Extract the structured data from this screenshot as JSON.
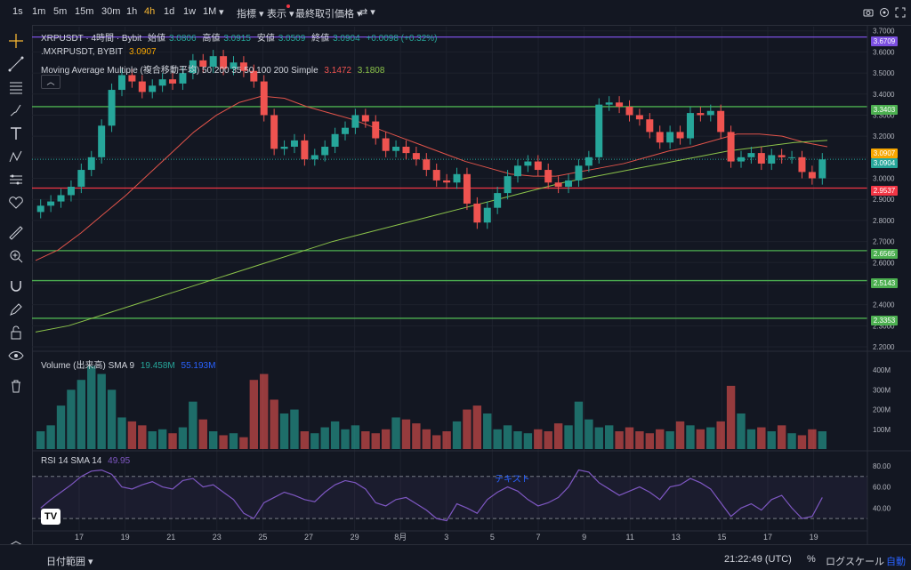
{
  "toolbar": {
    "timeframes": [
      "1s",
      "1m",
      "5m",
      "15m",
      "30m",
      "1h",
      "4h",
      "1d",
      "1w",
      "1M"
    ],
    "active_timeframe": "4h",
    "indicators_label": "指標",
    "display_label": "表示",
    "price_type_label": "最終取引価格",
    "icons": [
      "camera-icon",
      "settings-icon",
      "fullscreen-icon"
    ]
  },
  "legend": {
    "symbol_line": "XRPUSDT · 4時間 · Bybit",
    "open_label": "始値",
    "open": "3.0806",
    "high_label": "高値",
    "high": "3.0915",
    "low_label": "安値",
    "low": "3.0509",
    "close_label": "終値",
    "close": "3.0904",
    "change": "+0.0098 (+0.32%)",
    "mx_line": ".MXRPUSDT, BYBIT",
    "mx_value": "3.0907",
    "ma_label": "Moving Average Multiple (複合移動平均) 50 200 35 50 100 200 Simple",
    "ma_value1": "3.1472",
    "ma_value2": "3.1808",
    "volume_label": "Volume (出来高) SMA 9",
    "volume_v1": "19.458M",
    "volume_v2": "55.193M",
    "rsi_label": "RSI 14 SMA 14",
    "rsi_value": "49.95",
    "rsi_annotation": "テキスト"
  },
  "price_axis": [
    "3.7000",
    "3.6000",
    "3.5000",
    "3.4000",
    "3.3000",
    "3.2000",
    "3.1000",
    "3.0000",
    "2.9000",
    "2.8000",
    "2.7000",
    "2.6000",
    "2.5000",
    "2.4000",
    "2.3000",
    "2.2000"
  ],
  "price_pills": [
    {
      "value": "3.6709",
      "color": "#7b4fe0"
    },
    {
      "value": "3.3403",
      "color": "#4caf50"
    },
    {
      "value": "3.0907",
      "color": "#f7a600"
    },
    {
      "value": "3.0904",
      "color": "#26a69a"
    },
    {
      "value": "2.9537",
      "color": "#f23645"
    },
    {
      "value": "2.6565",
      "color": "#4caf50"
    },
    {
      "value": "2.5143",
      "color": "#4caf50"
    },
    {
      "value": "2.3353",
      "color": "#4caf50"
    }
  ],
  "volume_axis": [
    "400M",
    "300M",
    "200M",
    "100M"
  ],
  "rsi_axis": [
    "80.00",
    "60.00",
    "40.00"
  ],
  "time_axis": [
    "17",
    "19",
    "21",
    "23",
    "25",
    "27",
    "29",
    "8月",
    "3",
    "5",
    "7",
    "9",
    "11",
    "13",
    "15",
    "17",
    "19"
  ],
  "bottom": {
    "range_label": "日付範囲",
    "clock": "21:22:49 (UTC)",
    "percent_label": "%",
    "log_label": "ログスケール",
    "auto_label": "自動"
  },
  "colors": {
    "up": "#26a69a",
    "down": "#ef5350",
    "ma_fast": "#e0534a",
    "ma_slow": "#8bc34a",
    "rsi": "#7e57c2",
    "bg": "#131722"
  },
  "chart_data": {
    "type": "candlestick",
    "symbol": "XRPUSDT",
    "interval": "4h",
    "ylim": [
      2.2,
      3.72
    ],
    "horizontal_levels": [
      3.6709,
      3.3403,
      2.9537,
      2.6565,
      2.5143,
      2.3353
    ],
    "close_series": [
      2.87,
      2.89,
      2.92,
      2.96,
      3.04,
      3.1,
      3.25,
      3.42,
      3.49,
      3.46,
      3.41,
      3.44,
      3.47,
      3.45,
      3.5,
      3.56,
      3.53,
      3.58,
      3.52,
      3.55,
      3.51,
      3.46,
      3.3,
      3.14,
      3.15,
      3.18,
      3.09,
      3.11,
      3.15,
      3.21,
      3.24,
      3.3,
      3.27,
      3.19,
      3.13,
      3.15,
      3.12,
      3.09,
      3.04,
      2.99,
      2.98,
      3.02,
      2.88,
      2.79,
      2.86,
      2.93,
      3.01,
      3.06,
      3.08,
      3.04,
      2.98,
      2.96,
      2.99,
      3.06,
      3.1,
      3.35,
      3.36,
      3.34,
      3.3,
      3.28,
      3.22,
      3.17,
      3.22,
      3.19,
      3.31,
      3.3,
      3.32,
      3.22,
      3.08,
      3.1,
      3.12,
      3.07,
      3.11,
      3.1,
      3.1,
      3.03,
      3.0,
      3.09
    ],
    "ma_fast": [
      2.61,
      2.66,
      2.74,
      2.83,
      2.92,
      3.02,
      3.12,
      3.22,
      3.3,
      3.36,
      3.39,
      3.38,
      3.34,
      3.31,
      3.28,
      3.24,
      3.2,
      3.16,
      3.12,
      3.08,
      3.05,
      3.02,
      3.01,
      3.01,
      3.03,
      3.05,
      3.07,
      3.1,
      3.13,
      3.15,
      3.18,
      3.21,
      3.21,
      3.2,
      3.17,
      3.15
    ],
    "ma_slow": [
      2.27,
      2.3,
      2.35,
      2.4,
      2.45,
      2.5,
      2.55,
      2.6,
      2.65,
      2.7,
      2.74,
      2.78,
      2.82,
      2.86,
      2.9,
      2.94,
      2.98,
      3.01,
      3.04,
      3.07,
      3.1,
      3.13,
      3.15,
      3.17,
      3.18
    ],
    "volume": [
      90,
      120,
      220,
      300,
      350,
      420,
      380,
      300,
      160,
      140,
      120,
      90,
      100,
      80,
      110,
      240,
      150,
      90,
      70,
      80,
      60,
      350,
      380,
      250,
      180,
      200,
      90,
      80,
      110,
      140,
      100,
      120,
      90,
      80,
      100,
      160,
      150,
      130,
      100,
      70,
      90,
      140,
      200,
      220,
      180,
      100,
      120,
      90,
      80,
      100,
      90,
      130,
      120,
      240,
      150,
      110,
      120,
      90,
      110,
      90,
      80,
      100,
      90,
      140,
      120,
      100,
      110,
      140,
      320,
      180,
      100,
      110,
      90,
      120,
      80,
      70,
      100,
      90
    ],
    "rsi": [
      40,
      48,
      55,
      62,
      70,
      75,
      76,
      72,
      60,
      58,
      62,
      65,
      60,
      58,
      66,
      68,
      60,
      62,
      55,
      48,
      35,
      30,
      45,
      50,
      55,
      52,
      48,
      46,
      55,
      62,
      66,
      64,
      58,
      45,
      42,
      48,
      50,
      44,
      38,
      30,
      28,
      44,
      40,
      35,
      48,
      55,
      60,
      56,
      48,
      42,
      45,
      50,
      60,
      76,
      74,
      64,
      58,
      52,
      56,
      60,
      55,
      48,
      60,
      62,
      68,
      64,
      58,
      45,
      32,
      40,
      44,
      38,
      48,
      52,
      40,
      30,
      32,
      50
    ]
  }
}
